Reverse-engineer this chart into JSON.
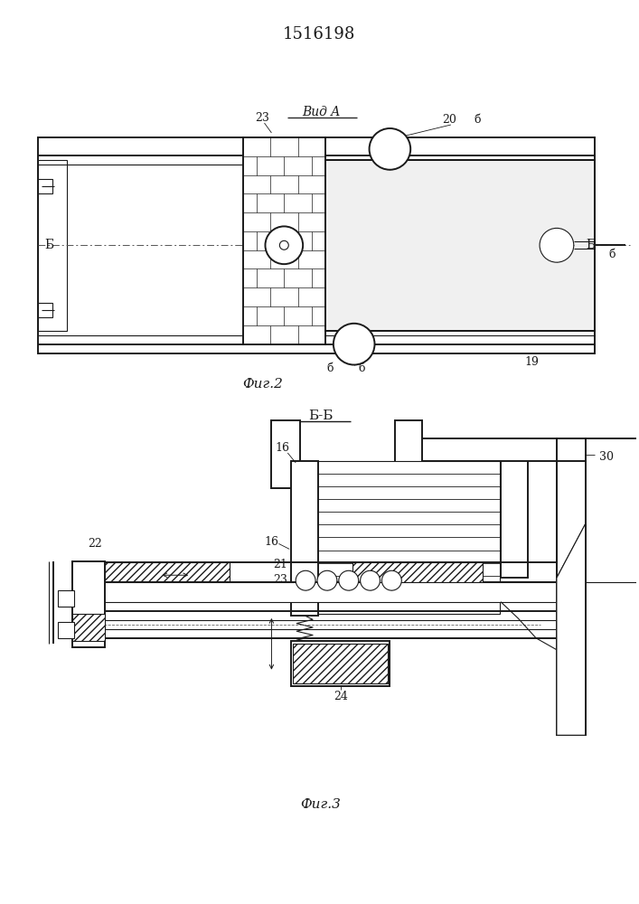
{
  "title": "1516198",
  "fig2_label": "Фиг.2",
  "fig3_label": "Фиг.3",
  "vid_a_label": "Вид A",
  "bb_label": "Б-Б",
  "line_color": "#1a1a1a",
  "bg_color": "#ffffff"
}
